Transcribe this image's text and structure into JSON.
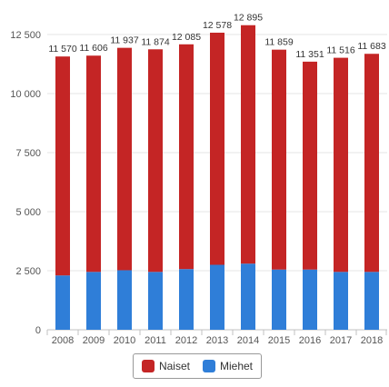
{
  "chart_data": {
    "type": "bar",
    "stacked": true,
    "categories": [
      "2008",
      "2009",
      "2010",
      "2011",
      "2012",
      "2013",
      "2014",
      "2015",
      "2016",
      "2017",
      "2018"
    ],
    "series": [
      {
        "name": "Miehet",
        "color": "#2f7ed8",
        "values": [
          2300,
          2450,
          2520,
          2450,
          2570,
          2750,
          2800,
          2550,
          2550,
          2450,
          2450
        ]
      },
      {
        "name": "Naiset",
        "color": "#c42525",
        "values": [
          9270,
          9156,
          9417,
          9424,
          9515,
          9828,
          10095,
          9309,
          8801,
          9066,
          9233
        ]
      }
    ],
    "totals": [
      11570,
      11606,
      11937,
      11874,
      12085,
      12578,
      12895,
      11859,
      11351,
      11516,
      11683
    ],
    "total_labels": [
      "11 570",
      "11 606",
      "11 937",
      "11 874",
      "12 085",
      "12 578",
      "12 895",
      "11 859",
      "11 351",
      "11 516",
      "11 683"
    ],
    "yticks": [
      0,
      2500,
      5000,
      7500,
      10000,
      12500
    ],
    "ytick_labels": [
      "0",
      "2 500",
      "5 000",
      "7 500",
      "10 000",
      "12 500"
    ],
    "ylim": [
      0,
      12500
    ],
    "grid": true,
    "legend_position": "bottom-center"
  },
  "legend": {
    "items": [
      {
        "label": "Naiset",
        "color": "#c42525"
      },
      {
        "label": "Miehet",
        "color": "#2f7ed8"
      }
    ]
  }
}
